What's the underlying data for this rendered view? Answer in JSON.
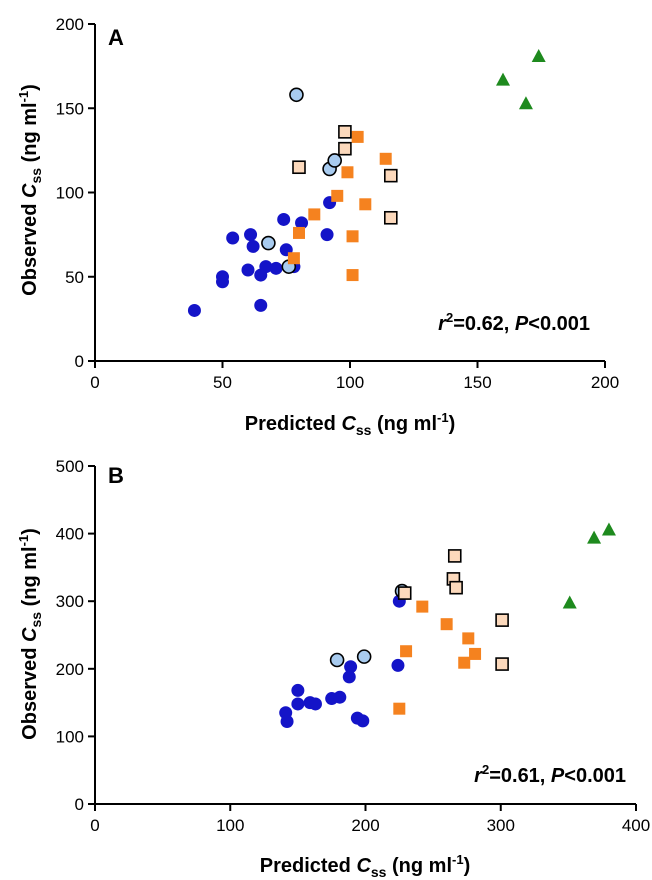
{
  "chart_data": [
    {
      "type": "scatter",
      "panel_label": "A",
      "xlabel": {
        "main": "Predicted ",
        "italic": "C",
        "sub": "ss",
        "unit": " (ng ml",
        "sup": "-1",
        "close": ")"
      },
      "ylabel": {
        "main": "Observed ",
        "italic": "C",
        "sub": "ss",
        "unit": " (ng ml",
        "sup": "-1",
        "close": ")"
      },
      "xlim": [
        0,
        200
      ],
      "ylim": [
        0,
        200
      ],
      "xticks": [
        "0",
        "50",
        "100",
        "150",
        "200"
      ],
      "yticks": [
        "0",
        "50",
        "100",
        "150",
        "200"
      ],
      "xtick_values": [
        0,
        50,
        100,
        150,
        200
      ],
      "ytick_values": [
        0,
        50,
        100,
        150,
        200
      ],
      "annotation": {
        "r": "r",
        "exp": "2",
        "eq": "=0.62, ",
        "p": "P",
        "rest": "<0.001"
      },
      "grid": false,
      "series": [
        {
          "marker": "circle",
          "color": "#1414c8",
          "edge": "none",
          "points": [
            [
              39,
              30
            ],
            [
              50,
              50
            ],
            [
              50,
              47
            ],
            [
              54,
              73
            ],
            [
              60,
              54
            ],
            [
              61,
              75
            ],
            [
              62,
              68
            ],
            [
              65,
              33
            ],
            [
              65,
              51
            ],
            [
              67,
              56
            ],
            [
              71,
              55
            ],
            [
              74,
              84
            ],
            [
              75,
              66
            ],
            [
              78,
              56
            ],
            [
              81,
              82
            ],
            [
              91,
              75
            ],
            [
              92,
              94
            ]
          ]
        },
        {
          "marker": "circle",
          "color": "#a8cbef",
          "edge": "#000000",
          "points": [
            [
              79,
              158
            ],
            [
              68,
              70
            ],
            [
              76,
              56
            ],
            [
              92,
              114
            ],
            [
              94,
              119
            ]
          ]
        },
        {
          "marker": "square",
          "color": "#f5821f",
          "edge": "none",
          "points": [
            [
              78,
              61
            ],
            [
              80,
              76
            ],
            [
              86,
              87
            ],
            [
              95,
              98
            ],
            [
              99,
              112
            ],
            [
              101,
              74
            ],
            [
              101,
              51
            ],
            [
              103,
              133
            ],
            [
              106,
              93
            ],
            [
              114,
              120
            ]
          ]
        },
        {
          "marker": "square",
          "color": "#fcd9bc",
          "edge": "#000000",
          "points": [
            [
              80,
              115
            ],
            [
              98,
              136
            ],
            [
              98,
              126
            ],
            [
              116,
              110
            ],
            [
              116,
              85
            ]
          ]
        },
        {
          "marker": "triangle",
          "color": "#1e8a1e",
          "edge": "none",
          "points": [
            [
              160,
              167
            ],
            [
              169,
              153
            ],
            [
              174,
              181
            ]
          ]
        }
      ]
    },
    {
      "type": "scatter",
      "panel_label": "B",
      "xlabel": {
        "main": "Predicted ",
        "italic": "C",
        "sub": "ss",
        "unit": " (ng ml",
        "sup": "-1",
        "close": ")"
      },
      "ylabel": {
        "main": "Observed ",
        "italic": "C",
        "sub": "ss",
        "unit": " (ng ml",
        "sup": "-1",
        "close": ")"
      },
      "xlim": [
        0,
        400
      ],
      "ylim": [
        0,
        500
      ],
      "xticks": [
        "0",
        "100",
        "200",
        "300",
        "400"
      ],
      "yticks": [
        "0",
        "100",
        "200",
        "300",
        "400",
        "500"
      ],
      "xtick_values": [
        0,
        100,
        200,
        300,
        400
      ],
      "ytick_values": [
        0,
        100,
        200,
        300,
        400,
        500
      ],
      "annotation": {
        "r": "r",
        "exp": "2",
        "eq": "=0.61, ",
        "p": "P",
        "rest": "<0.001"
      },
      "grid": false,
      "series": [
        {
          "marker": "circle",
          "color": "#1414c8",
          "edge": "none",
          "points": [
            [
              141,
              135
            ],
            [
              142,
              122
            ],
            [
              150,
              148
            ],
            [
              150,
              168
            ],
            [
              159,
              150
            ],
            [
              163,
              148
            ],
            [
              175,
              156
            ],
            [
              181,
              158
            ],
            [
              188,
              188
            ],
            [
              189,
              203
            ],
            [
              194,
              127
            ],
            [
              198,
              123
            ],
            [
              224,
              205
            ],
            [
              225,
              300
            ]
          ]
        },
        {
          "marker": "circle",
          "color": "#a8cbef",
          "edge": "#000000",
          "points": [
            [
              179,
              213
            ],
            [
              199,
              218
            ],
            [
              227,
              315
            ]
          ]
        },
        {
          "marker": "square",
          "color": "#f5821f",
          "edge": "none",
          "points": [
            [
              225,
              141
            ],
            [
              230,
              226
            ],
            [
              242,
              292
            ],
            [
              260,
              266
            ],
            [
              273,
              209
            ],
            [
              276,
              245
            ],
            [
              281,
              222
            ]
          ]
        },
        {
          "marker": "square",
          "color": "#fcd9bc",
          "edge": "#000000",
          "points": [
            [
              229,
              312
            ],
            [
              265,
              333
            ],
            [
              266,
              367
            ],
            [
              267,
              320
            ],
            [
              301,
              272
            ],
            [
              301,
              207
            ]
          ]
        },
        {
          "marker": "triangle",
          "color": "#1e8a1e",
          "edge": "none",
          "points": [
            [
              351,
              298
            ],
            [
              369,
              394
            ],
            [
              380,
              406
            ]
          ]
        }
      ]
    }
  ]
}
